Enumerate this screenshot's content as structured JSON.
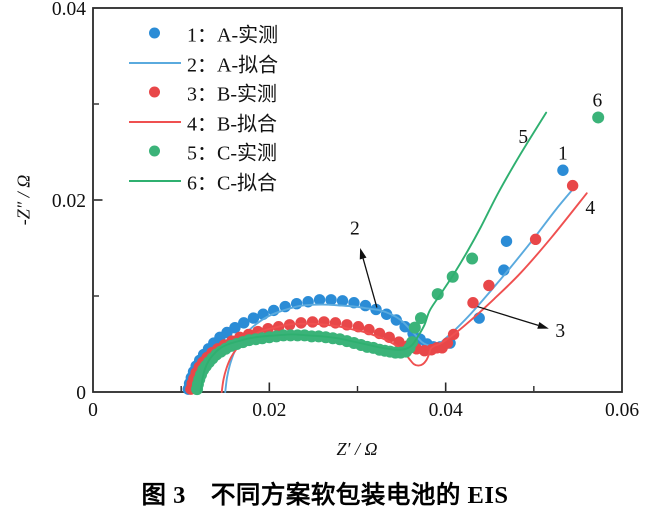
{
  "caption": "图 3　不同方案软包装电池的 EIS",
  "axes": {
    "xlabel": "Z′ / Ω",
    "ylabel": "-Z″ / Ω"
  },
  "legend": {
    "entries": [
      {
        "label": "1：A-实测",
        "marker": "dot",
        "color": "#2b8cd6"
      },
      {
        "label": "2：A-拟合",
        "marker": "line",
        "color": "#5aaade"
      },
      {
        "label": "3：B-实测",
        "marker": "dot",
        "color": "#e84749"
      },
      {
        "label": "4：B-拟合",
        "marker": "line",
        "color": "#ef5050"
      },
      {
        "label": "5：C-实测",
        "marker": "dot",
        "color": "#3bb379"
      },
      {
        "label": "6：C-拟合",
        "marker": "line",
        "color": "#2fb070"
      }
    ]
  },
  "chart_data": {
    "type": "scatter",
    "title": "图 3　不同方案软包装电池的 EIS",
    "xlabel": "Z′ / Ω",
    "ylabel": "-Z″ / Ω",
    "xlim": [
      0,
      0.06
    ],
    "ylim": [
      0,
      0.04
    ],
    "xticks": {
      "major": [
        0,
        0.02,
        0.04,
        0.06
      ],
      "labels": [
        "0",
        "0.02",
        "0.04",
        "0.06"
      ],
      "minor": [
        0.01,
        0.03,
        0.05
      ]
    },
    "yticks": {
      "major": [
        0,
        0.02,
        0.04
      ],
      "labels": [
        "0",
        "0.02",
        "0.04"
      ],
      "minor": [
        0.01,
        0.03
      ]
    },
    "axis_color": "#2a2a2a",
    "series": [
      {
        "name": "1：A-实测",
        "type": "scatter",
        "color": "#2b8cd6",
        "size": 5.7,
        "points": [
          [
            0.0108,
            0.0003
          ],
          [
            0.01095,
            0.0009
          ],
          [
            0.01115,
            0.0015
          ],
          [
            0.0114,
            0.0021
          ],
          [
            0.0117,
            0.0027
          ],
          [
            0.0121,
            0.0033
          ],
          [
            0.01255,
            0.0039
          ],
          [
            0.0131,
            0.0045
          ],
          [
            0.0137,
            0.0051
          ],
          [
            0.0144,
            0.0057
          ],
          [
            0.0152,
            0.0062
          ],
          [
            0.0161,
            0.0067
          ],
          [
            0.0171,
            0.0072
          ],
          [
            0.0182,
            0.0077
          ],
          [
            0.0193,
            0.0081
          ],
          [
            0.0205,
            0.0085
          ],
          [
            0.0218,
            0.0089
          ],
          [
            0.0231,
            0.0092
          ],
          [
            0.0244,
            0.0094
          ],
          [
            0.0257,
            0.0096
          ],
          [
            0.027,
            0.0096
          ],
          [
            0.0283,
            0.0095
          ],
          [
            0.0296,
            0.0093
          ],
          [
            0.0309,
            0.009
          ],
          [
            0.0321,
            0.0086
          ],
          [
            0.0333,
            0.0081
          ],
          [
            0.0344,
            0.0075
          ],
          [
            0.0354,
            0.0068
          ],
          [
            0.0363,
            0.0061
          ],
          [
            0.0371,
            0.0055
          ],
          [
            0.0379,
            0.005
          ],
          [
            0.0386,
            0.0047
          ],
          [
            0.0394,
            0.0047
          ],
          [
            0.0405,
            0.0051
          ],
          [
            0.0438,
            0.0077
          ],
          [
            0.0466,
            0.0127
          ],
          [
            0.0469,
            0.0157
          ],
          [
            0.0533,
            0.0231
          ]
        ]
      },
      {
        "name": "2：A-拟合",
        "type": "line",
        "color": "#5aaade",
        "width": 1.9,
        "points": [
          [
            0.015,
            0.0
          ],
          [
            0.0152,
            0.0015
          ],
          [
            0.01555,
            0.0029
          ],
          [
            0.01605,
            0.0042
          ],
          [
            0.0167,
            0.0053
          ],
          [
            0.01755,
            0.0063
          ],
          [
            0.01855,
            0.0071
          ],
          [
            0.0197,
            0.0078
          ],
          [
            0.02095,
            0.0083
          ],
          [
            0.0223,
            0.0087
          ],
          [
            0.0237,
            0.009
          ],
          [
            0.0252,
            0.0091
          ],
          [
            0.0267,
            0.0091
          ],
          [
            0.0282,
            0.009
          ],
          [
            0.0297,
            0.0089
          ],
          [
            0.0312,
            0.0087
          ],
          [
            0.0326,
            0.0085
          ],
          [
            0.0338,
            0.0081
          ],
          [
            0.0349,
            0.0075
          ],
          [
            0.0358,
            0.0067
          ],
          [
            0.0366,
            0.0059
          ],
          [
            0.0373,
            0.0052
          ],
          [
            0.0379,
            0.0049
          ],
          [
            0.0385,
            0.0048
          ],
          [
            0.0392,
            0.005
          ],
          [
            0.04,
            0.0056
          ],
          [
            0.0412,
            0.0066
          ],
          [
            0.0428,
            0.0081
          ],
          [
            0.0448,
            0.0102
          ],
          [
            0.0472,
            0.0128
          ],
          [
            0.05,
            0.016
          ],
          [
            0.0525,
            0.019
          ],
          [
            0.0545,
            0.0212
          ]
        ]
      },
      {
        "name": "3：B-实测",
        "type": "scatter",
        "color": "#e84749",
        "size": 5.7,
        "points": [
          [
            0.0111,
            0.0003
          ],
          [
            0.01125,
            0.0009
          ],
          [
            0.01145,
            0.0014
          ],
          [
            0.0117,
            0.002
          ],
          [
            0.01205,
            0.0026
          ],
          [
            0.01245,
            0.0031
          ],
          [
            0.01295,
            0.0036
          ],
          [
            0.0135,
            0.0041
          ],
          [
            0.01415,
            0.0045
          ],
          [
            0.0149,
            0.0049
          ],
          [
            0.01575,
            0.0053
          ],
          [
            0.01665,
            0.0057
          ],
          [
            0.01765,
            0.006
          ],
          [
            0.0187,
            0.0063
          ],
          [
            0.01985,
            0.0066
          ],
          [
            0.02105,
            0.0068
          ],
          [
            0.0223,
            0.007
          ],
          [
            0.0236,
            0.0072
          ],
          [
            0.0249,
            0.0073
          ],
          [
            0.0262,
            0.0073
          ],
          [
            0.0275,
            0.0072
          ],
          [
            0.0288,
            0.007
          ],
          [
            0.0301,
            0.0068
          ],
          [
            0.0313,
            0.0065
          ],
          [
            0.0325,
            0.0061
          ],
          [
            0.0336,
            0.0057
          ],
          [
            0.0347,
            0.0052
          ],
          [
            0.0357,
            0.0048
          ],
          [
            0.0367,
            0.0045
          ],
          [
            0.0376,
            0.0043
          ],
          [
            0.0384,
            0.0044
          ],
          [
            0.039,
            0.0046
          ],
          [
            0.0396,
            0.0046
          ],
          [
            0.0402,
            0.0051
          ],
          [
            0.0409,
            0.006
          ],
          [
            0.0431,
            0.0093
          ],
          [
            0.0449,
            0.0111
          ],
          [
            0.0502,
            0.0159
          ],
          [
            0.0544,
            0.0215
          ]
        ]
      },
      {
        "name": "4：B-拟合",
        "type": "line",
        "color": "#ef5050",
        "width": 1.9,
        "points": [
          [
            0.0146,
            0.0
          ],
          [
            0.0148,
            0.0013
          ],
          [
            0.01515,
            0.0025
          ],
          [
            0.01565,
            0.0036
          ],
          [
            0.0163,
            0.0045
          ],
          [
            0.01715,
            0.0053
          ],
          [
            0.01815,
            0.0059
          ],
          [
            0.0193,
            0.0064
          ],
          [
            0.0206,
            0.0067
          ],
          [
            0.022,
            0.007
          ],
          [
            0.0235,
            0.0071
          ],
          [
            0.025,
            0.0071
          ],
          [
            0.0265,
            0.007
          ],
          [
            0.028,
            0.0068
          ],
          [
            0.0295,
            0.0065
          ],
          [
            0.0309,
            0.0062
          ],
          [
            0.0322,
            0.0058
          ],
          [
            0.0335,
            0.0053
          ],
          [
            0.0346,
            0.0047
          ],
          [
            0.0354,
            0.004
          ],
          [
            0.036,
            0.0033
          ],
          [
            0.0364,
            0.0029
          ],
          [
            0.0369,
            0.00275
          ],
          [
            0.0374,
            0.0029
          ],
          [
            0.0378,
            0.0033
          ],
          [
            0.0381,
            0.0039
          ],
          [
            0.0383,
            0.0045
          ],
          [
            0.0387,
            0.0048
          ],
          [
            0.0393,
            0.005
          ],
          [
            0.04,
            0.0054
          ],
          [
            0.0412,
            0.0062
          ],
          [
            0.043,
            0.0076
          ],
          [
            0.0455,
            0.0097
          ],
          [
            0.0485,
            0.0124
          ],
          [
            0.052,
            0.0161
          ],
          [
            0.056,
            0.0207
          ]
        ]
      },
      {
        "name": "5：C-实测",
        "type": "scatter",
        "color": "#3bb379",
        "size": 6.0,
        "points": [
          [
            0.0118,
            0.0003
          ],
          [
            0.0119,
            0.0008
          ],
          [
            0.01205,
            0.0013
          ],
          [
            0.01225,
            0.0018
          ],
          [
            0.0125,
            0.0023
          ],
          [
            0.0128,
            0.0027
          ],
          [
            0.01315,
            0.0031
          ],
          [
            0.01355,
            0.0035
          ],
          [
            0.014,
            0.0039
          ],
          [
            0.0145,
            0.0042
          ],
          [
            0.01505,
            0.0045
          ],
          [
            0.01565,
            0.0048
          ],
          [
            0.0163,
            0.005
          ],
          [
            0.017,
            0.0052
          ],
          [
            0.0177,
            0.0054
          ],
          [
            0.01845,
            0.0055
          ],
          [
            0.0192,
            0.0056
          ],
          [
            0.02,
            0.0057
          ],
          [
            0.0208,
            0.0058
          ],
          [
            0.0216,
            0.0059
          ],
          [
            0.0224,
            0.0059
          ],
          [
            0.0232,
            0.0059
          ],
          [
            0.024,
            0.0059
          ],
          [
            0.0248,
            0.0058
          ],
          [
            0.0256,
            0.0058
          ],
          [
            0.0264,
            0.0057
          ],
          [
            0.0272,
            0.0056
          ],
          [
            0.028,
            0.0055
          ],
          [
            0.0288,
            0.0053
          ],
          [
            0.0296,
            0.0051
          ],
          [
            0.0304,
            0.0049
          ],
          [
            0.0311,
            0.0047
          ],
          [
            0.0318,
            0.0046
          ],
          [
            0.0325,
            0.0044
          ],
          [
            0.0331,
            0.0043
          ],
          [
            0.0337,
            0.0042
          ],
          [
            0.0343,
            0.0041
          ],
          [
            0.0349,
            0.0041
          ],
          [
            0.0355,
            0.0042
          ],
          [
            0.0359,
            0.0046
          ],
          [
            0.0362,
            0.0052
          ],
          [
            0.0365,
            0.0067
          ],
          [
            0.0372,
            0.0077
          ],
          [
            0.0391,
            0.0102
          ],
          [
            0.0408,
            0.012
          ],
          [
            0.043,
            0.0139
          ],
          [
            0.0573,
            0.0286
          ]
        ]
      },
      {
        "name": "6：C-拟合",
        "type": "line",
        "color": "#2fb070",
        "width": 1.9,
        "points": [
          [
            0.0122,
            0.0
          ],
          [
            0.0124,
            0.0013
          ],
          [
            0.0127,
            0.0024
          ],
          [
            0.01315,
            0.0033
          ],
          [
            0.01375,
            0.004
          ],
          [
            0.0145,
            0.0046
          ],
          [
            0.0154,
            0.005
          ],
          [
            0.0165,
            0.0053
          ],
          [
            0.0178,
            0.0056
          ],
          [
            0.0193,
            0.0058
          ],
          [
            0.0209,
            0.0059
          ],
          [
            0.0226,
            0.006
          ],
          [
            0.0243,
            0.0059
          ],
          [
            0.026,
            0.0058
          ],
          [
            0.0277,
            0.0056
          ],
          [
            0.0293,
            0.0053
          ],
          [
            0.0308,
            0.005
          ],
          [
            0.0322,
            0.0047
          ],
          [
            0.0335,
            0.0045
          ],
          [
            0.0346,
            0.0044
          ],
          [
            0.0355,
            0.0045
          ],
          [
            0.0362,
            0.0049
          ],
          [
            0.0368,
            0.0057
          ],
          [
            0.0376,
            0.007
          ],
          [
            0.0382,
            0.0085
          ],
          [
            0.0395,
            0.0103
          ],
          [
            0.041,
            0.0124
          ],
          [
            0.0425,
            0.0147
          ],
          [
            0.044,
            0.0172
          ],
          [
            0.046,
            0.0208
          ],
          [
            0.0485,
            0.0248
          ],
          [
            0.0514,
            0.0291
          ]
        ]
      }
    ],
    "annotations": {
      "labels": [
        {
          "text": "1",
          "x": 0.0533,
          "y": 0.0249
        },
        {
          "text": "2",
          "x": 0.0297,
          "y": 0.0171
        },
        {
          "text": "3",
          "x": 0.053,
          "y": 0.0064
        },
        {
          "text": "4",
          "x": 0.0564,
          "y": 0.0192
        },
        {
          "text": "5",
          "x": 0.0488,
          "y": 0.0266
        },
        {
          "text": "6",
          "x": 0.0572,
          "y": 0.0304
        }
      ],
      "arrows": [
        {
          "from": [
            0.0322,
            0.0088
          ],
          "to": [
            0.0303,
            0.015
          ]
        },
        {
          "from": [
            0.0436,
            0.0089
          ],
          "to": [
            0.0517,
            0.0066
          ]
        }
      ]
    }
  }
}
